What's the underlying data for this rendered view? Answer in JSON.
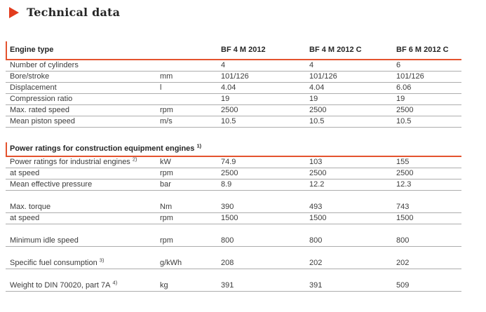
{
  "page_title": "Technical data",
  "colors": {
    "accent": "#e4532e",
    "title_arrow": "#e23c1e",
    "row_line": "#adadad"
  },
  "table": {
    "header": {
      "label": "Engine type",
      "unit": "",
      "columns": [
        "BF 4 M 2012",
        "BF 4 M 2012 C",
        "BF 6 M 2012 C"
      ]
    },
    "sections": [
      {
        "rows": [
          {
            "label": "Number of cylinders",
            "unit": "",
            "values": [
              "4",
              "4",
              "6"
            ]
          },
          {
            "label": "Bore/stroke",
            "unit": "mm",
            "values": [
              "101/126",
              "101/126",
              "101/126"
            ]
          },
          {
            "label": "Displacement",
            "unit": "l",
            "values": [
              "4.04",
              "4.04",
              "6.06"
            ]
          },
          {
            "label": "Compression ratio",
            "unit": "",
            "values": [
              "19",
              "19",
              "19"
            ]
          },
          {
            "label": "Max. rated speed",
            "unit": "rpm",
            "values": [
              "2500",
              "2500",
              "2500"
            ]
          },
          {
            "label": "Mean piston speed",
            "unit": "m/s",
            "values": [
              "10.5",
              "10.5",
              "10.5"
            ]
          }
        ]
      },
      {
        "header": {
          "label": "Power ratings for construction equipment engines",
          "sup": "1)"
        },
        "rows": [
          {
            "label": "Power ratings for industrial engines",
            "sup": "2)",
            "unit": "kW",
            "values": [
              "74.9",
              "103",
              "155"
            ]
          },
          {
            "label": "at speed",
            "unit": "rpm",
            "values": [
              "2500",
              "2500",
              "2500"
            ]
          },
          {
            "label": "Mean effective pressure",
            "unit": "bar",
            "values": [
              "8.9",
              "12.2",
              "12.3"
            ]
          },
          {
            "gap": true
          },
          {
            "label": "Max. torque",
            "unit": "Nm",
            "values": [
              "390",
              "493",
              "743"
            ]
          },
          {
            "label": "at speed",
            "unit": "rpm",
            "values": [
              "1500",
              "1500",
              "1500"
            ]
          },
          {
            "gap": true
          },
          {
            "label": "Minimum idle speed",
            "unit": "rpm",
            "values": [
              "800",
              "800",
              "800"
            ]
          },
          {
            "gap": true
          },
          {
            "label": "Specific fuel consumption",
            "sup": "3)",
            "unit": "g/kWh",
            "values": [
              "208",
              "202",
              "202"
            ]
          },
          {
            "gap": true
          },
          {
            "label": "Weight to DIN 70020, part 7A",
            "sup": "4)",
            "unit": "kg",
            "values": [
              "391",
              "391",
              "509"
            ]
          }
        ]
      }
    ]
  }
}
